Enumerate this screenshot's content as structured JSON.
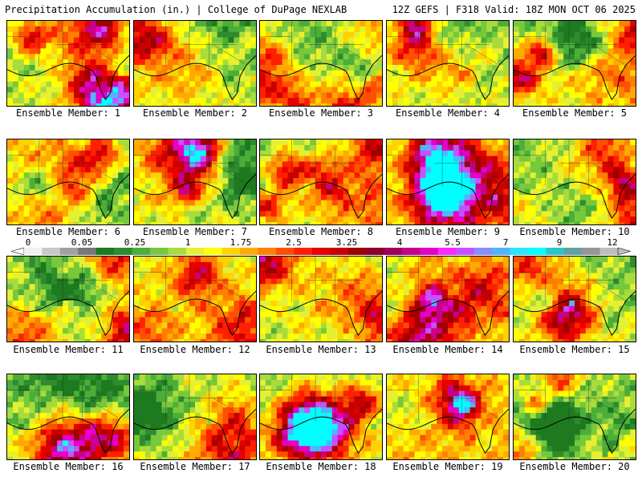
{
  "header": {
    "title": "Precipitation Accumulation (in.) | College of DuPage NEXLAB",
    "run_info": "12Z GEFS | F318 Valid: 18Z MON OCT 06 2025"
  },
  "colorbar": {
    "labels": [
      "0",
      "0.05",
      "0.25",
      "1",
      "1.75",
      "2.5",
      "3.25",
      "4",
      "5.5",
      "7",
      "9",
      "12"
    ],
    "colors": [
      "#f0f0f0",
      "#c8c8c8",
      "#a0a0a0",
      "#787878",
      "#1e7a1e",
      "#2e8b2e",
      "#4cae3a",
      "#78c83c",
      "#a8dc3c",
      "#e6f032",
      "#ffff00",
      "#ffd200",
      "#ffaa00",
      "#ff8000",
      "#ff5000",
      "#ff2000",
      "#e60000",
      "#c80000",
      "#a00000",
      "#8c0028",
      "#a0005a",
      "#c8008c",
      "#e600c8",
      "#ff28ff",
      "#c850ff",
      "#8c8cff",
      "#50b4ff",
      "#28e6ff",
      "#00ffff",
      "#28c8c8",
      "#64a0a0",
      "#969696",
      "#bebebe"
    ]
  },
  "members": [
    {
      "label": "Ensemble Member: 1",
      "seed": 11
    },
    {
      "label": "Ensemble Member: 2",
      "seed": 23
    },
    {
      "label": "Ensemble Member: 3",
      "seed": 37
    },
    {
      "label": "Ensemble Member: 4",
      "seed": 41
    },
    {
      "label": "Ensemble Member: 5",
      "seed": 53
    },
    {
      "label": "Ensemble Member: 6",
      "seed": 67
    },
    {
      "label": "Ensemble Member: 7",
      "seed": 71
    },
    {
      "label": "Ensemble Member: 8",
      "seed": 83
    },
    {
      "label": "Ensemble Member: 9",
      "seed": 97
    },
    {
      "label": "Ensemble Member: 10",
      "seed": 101
    },
    {
      "label": "Ensemble Member: 11",
      "seed": 113
    },
    {
      "label": "Ensemble Member: 12",
      "seed": 127
    },
    {
      "label": "Ensemble Member: 13",
      "seed": 131
    },
    {
      "label": "Ensemble Member: 14",
      "seed": 149
    },
    {
      "label": "Ensemble Member: 15",
      "seed": 151
    },
    {
      "label": "Ensemble Member: 16",
      "seed": 163
    },
    {
      "label": "Ensemble Member: 17",
      "seed": 173
    },
    {
      "label": "Ensemble Member: 18",
      "seed": 181
    },
    {
      "label": "Ensemble Member: 19",
      "seed": 191
    },
    {
      "label": "Ensemble Member: 20",
      "seed": 199
    }
  ]
}
